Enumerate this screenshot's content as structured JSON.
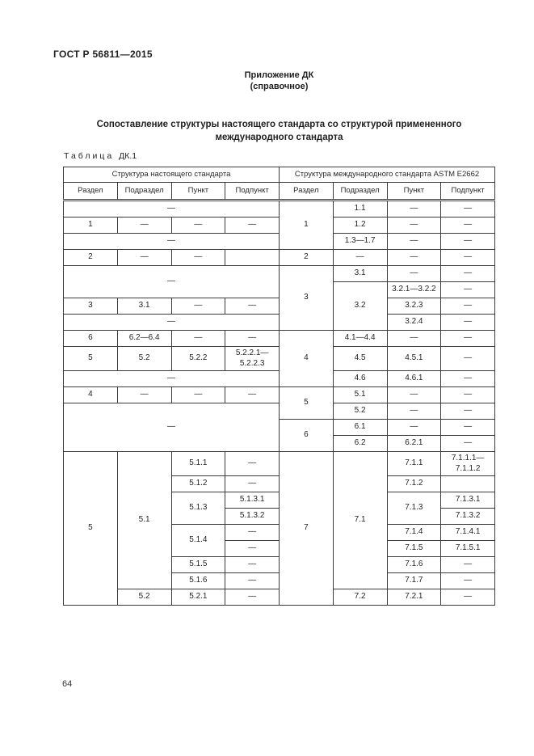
{
  "page": {
    "doc_number": "ГОСТ Р 56811—2015",
    "appendix_title": "Приложение ДК",
    "appendix_subtitle": "(справочное)",
    "main_title": "Сопоставление структуры настоящего стандарта со структурой примененного международного стандарта",
    "table_caption_word": "Таблица",
    "table_caption_number": "ДК.1",
    "page_number": "64"
  },
  "table": {
    "group_headers": [
      "Структура настоящего стандарта",
      "Структура международного стандарта ASTM E2662"
    ],
    "column_headers": [
      "Раздел",
      "Подраздел",
      "Пункт",
      "Подпункт",
      "Раздел",
      "Подраздел",
      "Пункт",
      "Подпункт"
    ],
    "rows": [
      [
        {
          "t": "—",
          "cs": 4
        },
        {
          "t": "1",
          "rs": 3
        },
        {
          "t": "1.1"
        },
        {
          "t": "—"
        },
        {
          "t": "—"
        }
      ],
      [
        {
          "t": "1"
        },
        {
          "t": "—"
        },
        {
          "t": "—"
        },
        {
          "t": "—"
        },
        {
          "t": "1.2"
        },
        {
          "t": "—"
        },
        {
          "t": "—"
        }
      ],
      [
        {
          "t": "—",
          "cs": 4
        },
        {
          "t": "1.3—1.7"
        },
        {
          "t": "—"
        },
        {
          "t": "—"
        }
      ],
      [
        {
          "t": "2"
        },
        {
          "t": "—"
        },
        {
          "t": "—"
        },
        {
          "t": ""
        },
        {
          "t": "2"
        },
        {
          "t": "—"
        },
        {
          "t": "—"
        },
        {
          "t": "—"
        }
      ],
      [
        {
          "t": "—",
          "cs": 4,
          "rs": 2
        },
        {
          "t": "3",
          "rs": 4
        },
        {
          "t": "3.1"
        },
        {
          "t": "—"
        },
        {
          "t": "—"
        }
      ],
      [
        {
          "t": "3.2",
          "rs": 3
        },
        {
          "t": "3.2.1—3.2.2"
        },
        {
          "t": "—"
        }
      ],
      [
        {
          "t": "3"
        },
        {
          "t": "3.1"
        },
        {
          "t": "—"
        },
        {
          "t": "—"
        },
        {
          "t": "3.2.3"
        },
        {
          "t": "—"
        }
      ],
      [
        {
          "t": "—",
          "cs": 4
        },
        {
          "t": "3.2.4"
        },
        {
          "t": "—"
        }
      ],
      [
        {
          "t": "6"
        },
        {
          "t": "6.2—6.4"
        },
        {
          "t": "—"
        },
        {
          "t": "—"
        },
        {
          "t": "4",
          "rs": 3
        },
        {
          "t": "4.1—4.4"
        },
        {
          "t": "—"
        },
        {
          "t": "—"
        }
      ],
      [
        {
          "t": "5"
        },
        {
          "t": "5.2"
        },
        {
          "t": "5.2.2"
        },
        {
          "t": "5.2.2.1—\n5.2.2.3"
        },
        {
          "t": "4.5"
        },
        {
          "t": "4.5.1"
        },
        {
          "t": "—"
        }
      ],
      [
        {
          "t": "—",
          "cs": 4
        },
        {
          "t": "4.6"
        },
        {
          "t": "4.6.1"
        },
        {
          "t": "—"
        }
      ],
      [
        {
          "t": "4"
        },
        {
          "t": "—"
        },
        {
          "t": "—"
        },
        {
          "t": "—"
        },
        {
          "t": "5",
          "rs": 2
        },
        {
          "t": "5.1"
        },
        {
          "t": "—"
        },
        {
          "t": "—"
        }
      ],
      [
        {
          "t": "—",
          "cs": 4,
          "rs": 3
        },
        {
          "t": "5.2"
        },
        {
          "t": "—"
        },
        {
          "t": "—"
        }
      ],
      [
        {
          "t": "6",
          "rs": 2
        },
        {
          "t": "6.1"
        },
        {
          "t": "—"
        },
        {
          "t": "—"
        }
      ],
      [
        {
          "t": "6.2"
        },
        {
          "t": "6.2.1"
        },
        {
          "t": "—"
        }
      ],
      [
        {
          "t": "5",
          "rs": 9
        },
        {
          "t": "5.1",
          "rs": 8
        },
        {
          "t": "5.1.1"
        },
        {
          "t": "—"
        },
        {
          "t": "7",
          "rs": 9
        },
        {
          "t": "7.1",
          "rs": 8
        },
        {
          "t": "7.1.1"
        },
        {
          "t": "7.1.1.1—\n7.1.1.2"
        }
      ],
      [
        {
          "t": "5.1.2"
        },
        {
          "t": "—"
        },
        {
          "t": "7.1.2"
        },
        {
          "t": ""
        }
      ],
      [
        {
          "t": "5.1.3",
          "rs": 2
        },
        {
          "t": "5.1.3.1"
        },
        {
          "t": "7.1.3",
          "rs": 2
        },
        {
          "t": "7.1.3.1"
        }
      ],
      [
        {
          "t": "5.1.3.2"
        },
        {
          "t": "7.1.3.2"
        }
      ],
      [
        {
          "t": "5.1.4",
          "rs": 2
        },
        {
          "t": "—"
        },
        {
          "t": "7.1.4"
        },
        {
          "t": "7.1.4.1"
        }
      ],
      [
        {
          "t": "—"
        },
        {
          "t": "7.1.5"
        },
        {
          "t": "7.1.5.1"
        }
      ],
      [
        {
          "t": "5.1.5"
        },
        {
          "t": "—"
        },
        {
          "t": "7.1.6"
        },
        {
          "t": "—"
        }
      ],
      [
        {
          "t": "5.1.6"
        },
        {
          "t": "—"
        },
        {
          "t": "7.1.7"
        },
        {
          "t": "—"
        }
      ],
      [
        {
          "t": "5.2"
        },
        {
          "t": "5.2.1"
        },
        {
          "t": "—"
        },
        {
          "t": "7.2"
        },
        {
          "t": "7.2.1"
        },
        {
          "t": "—"
        }
      ]
    ]
  }
}
